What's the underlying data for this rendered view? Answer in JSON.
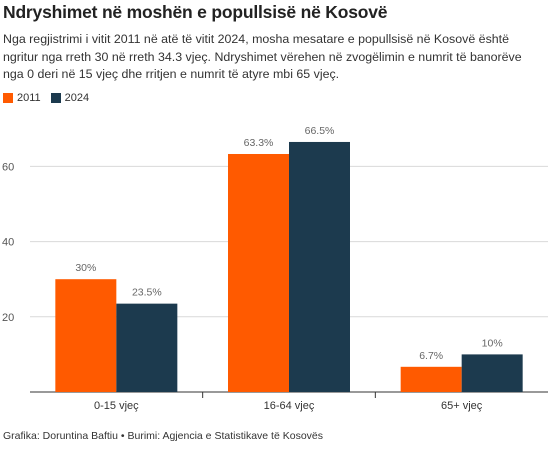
{
  "title": "Ndryshimet në moshën e popullsisë në Kosovë",
  "subtitle": "Nga regjistrimi i vitit 2011 në atë të vitit 2024, mosha mesatare e popullsisë në Kosovë është ngritur nga rreth 30 në rreth 34.3 vjeç. Ndryshimet vërehen në zvogëlimin e numrit të banorëve nga 0 deri në 15 vjeç dhe rritjen e numrit të atyre mbi 65 vjeç.",
  "source": "Grafika: Doruntina Baftiu • Burimi: Agjencia e Statistikave të Kosovës",
  "chart_data": {
    "type": "bar",
    "categories": [
      "0-15 vjeç",
      "16-64 vjeç",
      "65+ vjeç"
    ],
    "series": [
      {
        "name": "2011",
        "color": "#ff5a00",
        "values": [
          30,
          63.3,
          6.7
        ],
        "labels": [
          "30%",
          "63.3%",
          "6.7%"
        ]
      },
      {
        "name": "2024",
        "color": "#1c3a4e",
        "values": [
          23.5,
          66.5,
          10
        ],
        "labels": [
          "23.5%",
          "66.5%",
          "10%"
        ]
      }
    ],
    "yticks": [
      20,
      40,
      60
    ],
    "ylim": [
      0,
      70
    ],
    "grid": true,
    "legend": "top-left",
    "xlabel": "",
    "ylabel": ""
  }
}
